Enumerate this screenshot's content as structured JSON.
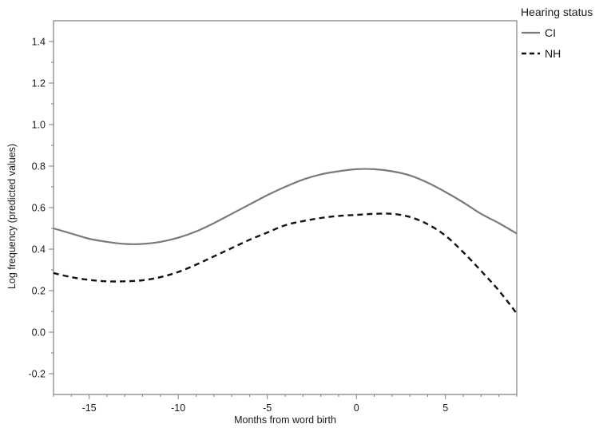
{
  "chart_data": {
    "type": "line",
    "title": "",
    "xlabel": "Months from word birth",
    "ylabel": "Log frequency (predicted values)",
    "xlim": [
      -17,
      9
    ],
    "ylim": [
      -0.3,
      1.5
    ],
    "x_ticks": [
      -15,
      -10,
      -5,
      0,
      5
    ],
    "y_ticks": [
      -0.2,
      0.0,
      0.2,
      0.4,
      0.6,
      0.8,
      1.0,
      1.2,
      1.4
    ],
    "y_tick_labels": [
      "-0.2",
      "0.0",
      "0.2",
      "0.4",
      "0.6",
      "0.8",
      "1.0",
      "1.2",
      "1.4"
    ],
    "grid": false,
    "legend": {
      "title": "Hearing status",
      "placement": "top-right-outside"
    },
    "series": [
      {
        "name": "CI",
        "style": "solid",
        "color": "#7a7a7a",
        "x": [
          -17,
          -16,
          -15,
          -14,
          -13,
          -12,
          -11,
          -10,
          -9,
          -8,
          -7,
          -6,
          -5,
          -4,
          -3,
          -2,
          -1,
          0,
          1,
          2,
          3,
          4,
          5,
          6,
          7,
          8,
          9
        ],
        "y": [
          0.5,
          0.475,
          0.45,
          0.435,
          0.425,
          0.425,
          0.435,
          0.455,
          0.485,
          0.525,
          0.57,
          0.615,
          0.66,
          0.7,
          0.735,
          0.76,
          0.775,
          0.785,
          0.785,
          0.775,
          0.755,
          0.72,
          0.675,
          0.625,
          0.57,
          0.525,
          0.475
        ]
      },
      {
        "name": "NH",
        "style": "dashed",
        "color": "#111111",
        "x": [
          -17,
          -16,
          -15,
          -14,
          -13,
          -12,
          -11,
          -10,
          -9,
          -8,
          -7,
          -6,
          -5,
          -4,
          -3,
          -2,
          -1,
          0,
          1,
          2,
          3,
          4,
          5,
          6,
          7,
          8,
          9
        ],
        "y": [
          0.285,
          0.265,
          0.252,
          0.245,
          0.245,
          0.25,
          0.265,
          0.29,
          0.325,
          0.365,
          0.405,
          0.445,
          0.48,
          0.515,
          0.535,
          0.55,
          0.56,
          0.565,
          0.57,
          0.57,
          0.555,
          0.52,
          0.465,
          0.385,
          0.295,
          0.2,
          0.09
        ]
      }
    ]
  }
}
